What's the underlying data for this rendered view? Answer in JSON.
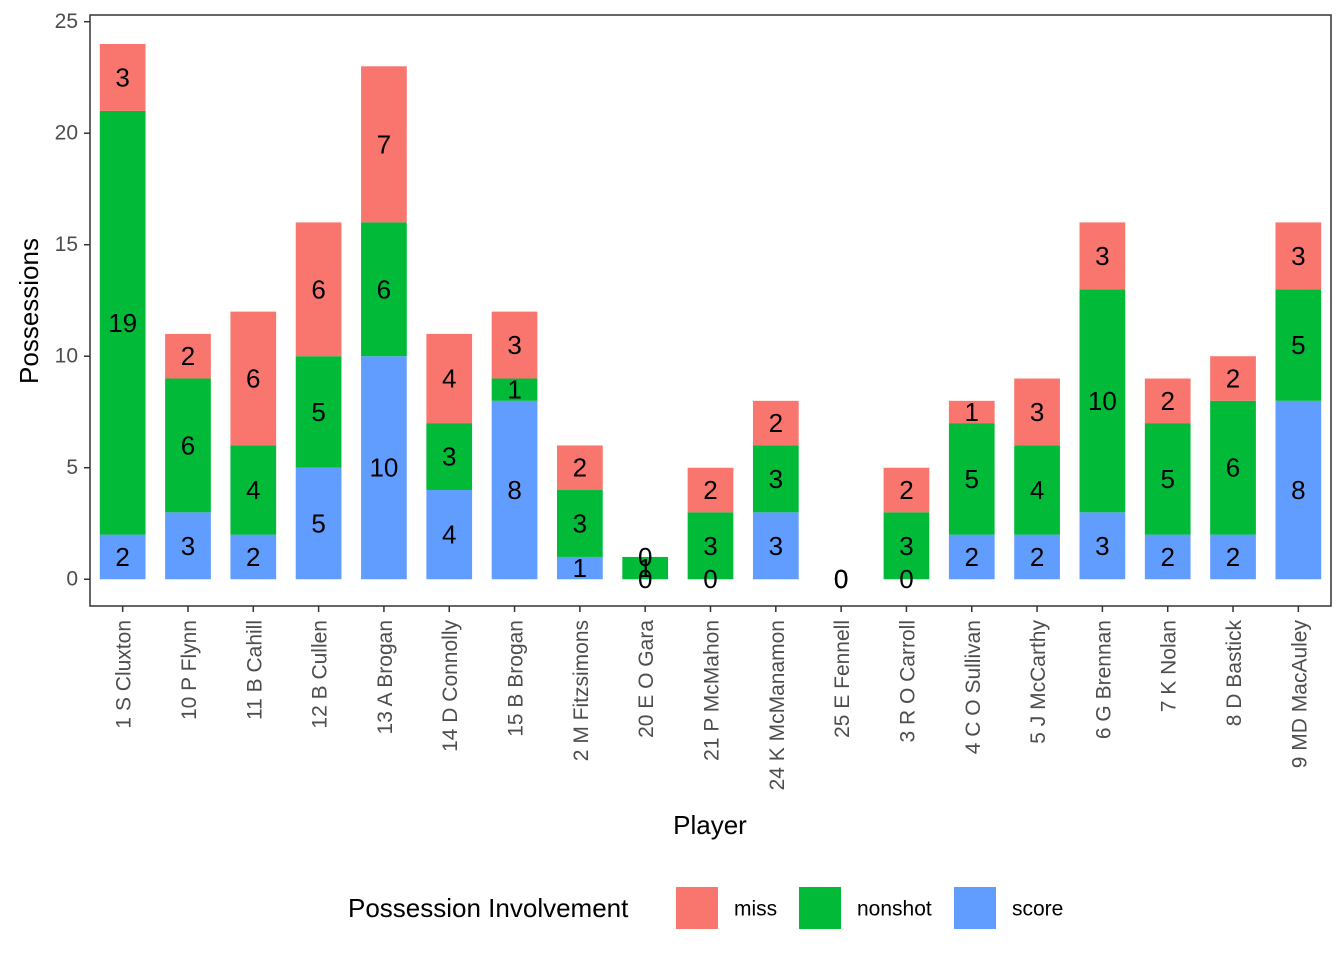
{
  "chart_data": {
    "type": "bar",
    "stacked": true,
    "xlabel": "Player",
    "ylabel": "Possessions",
    "ylim": [
      -1.2,
      25.3
    ],
    "yticks": [
      0,
      5,
      10,
      15,
      20,
      25
    ],
    "grid": false,
    "legend_title": "Possession Involvement",
    "legend_position": "bottom",
    "categories": [
      "1 S Cluxton",
      "10 P Flynn",
      "11 B Cahill",
      "12 B Cullen",
      "13 A Brogan",
      "14 D Connolly",
      "15 B Brogan",
      "2 M Fitzsimons",
      "20 E O Gara",
      "21 P McMahon",
      "24 K McManamon",
      "25 E Fennell",
      "3 R O Carroll",
      "4 C O Sullivan",
      "5 J McCarthy",
      "6 G Brennan",
      "7 K Nolan",
      "8 D Bastick",
      "9 MD MacAuley"
    ],
    "series": [
      {
        "name": "score",
        "color": "#619CFF",
        "values": [
          2,
          3,
          2,
          5,
          10,
          4,
          8,
          1,
          0,
          0,
          3,
          0,
          0,
          2,
          2,
          3,
          2,
          2,
          8
        ]
      },
      {
        "name": "nonshot",
        "color": "#00BA38",
        "values": [
          19,
          6,
          4,
          5,
          6,
          3,
          1,
          3,
          1,
          3,
          3,
          0,
          3,
          5,
          4,
          10,
          5,
          6,
          5
        ]
      },
      {
        "name": "miss",
        "color": "#F8766D",
        "values": [
          3,
          2,
          6,
          6,
          7,
          4,
          3,
          2,
          0,
          2,
          2,
          0,
          2,
          1,
          3,
          3,
          2,
          2,
          3
        ]
      }
    ],
    "legend_order": [
      "miss",
      "nonshot",
      "score"
    ]
  }
}
